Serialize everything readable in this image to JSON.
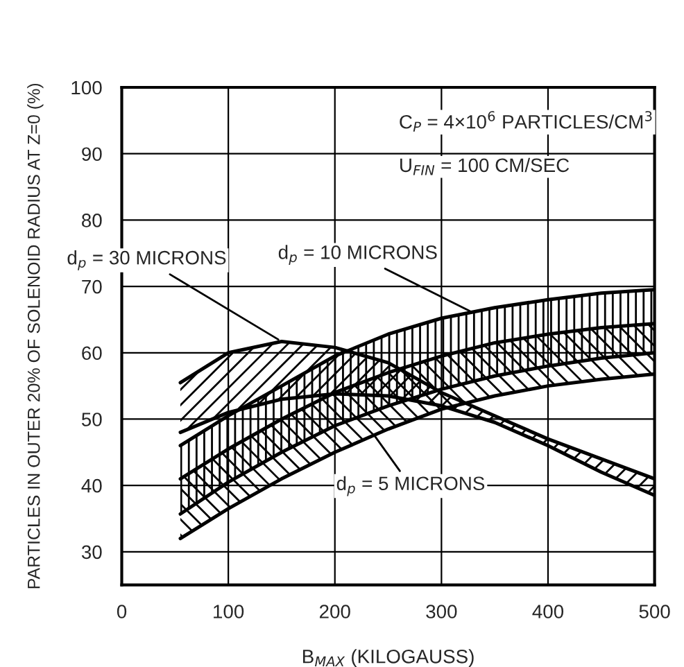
{
  "chart_data": {
    "type": "line",
    "x": [
      55,
      100,
      150,
      200,
      250,
      300,
      350,
      400,
      450,
      500
    ],
    "series": [
      {
        "color": "#000000",
        "values": [
          55.5,
          60,
          61.7,
          60.8,
          58.5,
          54,
          50.5,
          47,
          44,
          41
        ]
      },
      {
        "color": "#000000",
        "values": [
          48,
          51,
          53,
          53.8,
          53.5,
          52,
          49.5,
          46,
          42,
          38.5
        ]
      },
      {
        "color": "#000000",
        "values": [
          46,
          50.5,
          55,
          59.5,
          62.8,
          65.2,
          66.8,
          68,
          69,
          69.5
        ]
      },
      {
        "color": "#000000",
        "values": [
          35.7,
          40.5,
          45,
          49,
          52,
          54.5,
          56.5,
          58,
          59.2,
          60
        ]
      },
      {
        "color": "#000000",
        "values": [
          41,
          45.5,
          50,
          54,
          57,
          59.5,
          61.5,
          62.8,
          63.8,
          64.4
        ]
      },
      {
        "color": "#000000",
        "values": [
          32,
          36.5,
          41,
          45,
          48.5,
          51.5,
          53.5,
          55,
          56,
          56.8
        ]
      }
    ],
    "xlabel": "B$_{MAX}$ (KILOGAUSS)",
    "ylabel": "PARTICLES IN OUTER 20% OF SOLENOID RADIUS AT Z=0 (%)",
    "annotations": [
      {
        "text": "d$_{p}$ = 30 MICRONS",
        "x": 150,
        "y": 61.7
      },
      {
        "text": "d$_{p}$ = 10 MICRONS",
        "x": 330,
        "y": 66
      },
      {
        "text": "d$_{p}$ = 5 MICRONS",
        "x": 235,
        "y": 48
      },
      "C$_{P}$ = 4×10$^{6}$ PARTICLES/CM$^{3}$",
      "U$_{FIN}$ = 100 CM/SEC"
    ],
    "xlim": [
      0,
      500
    ],
    "xticks": [
      0,
      100,
      200,
      300,
      400,
      500
    ],
    "ylim": [
      25,
      100
    ],
    "yticks": [
      30,
      40,
      50,
      60,
      70,
      80,
      90,
      100
    ],
    "grid": true
  }
}
